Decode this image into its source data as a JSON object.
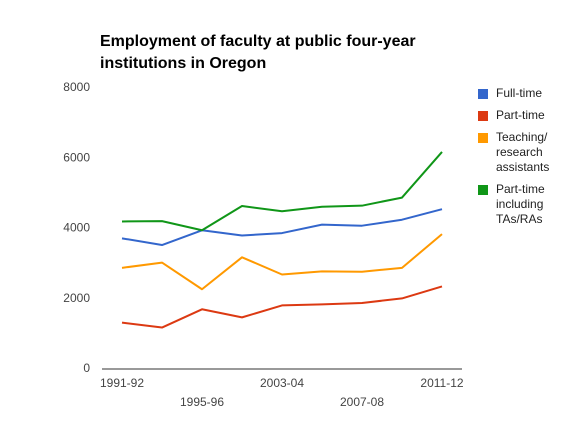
{
  "chart_data": {
    "type": "line",
    "title": "Employment of faculty at public four-year institutions in Oregon",
    "categories": [
      "1991-92",
      null,
      "1995-96",
      null,
      "2003-04",
      null,
      "2007-08",
      null,
      "2011-12"
    ],
    "series": [
      {
        "name": "Full-time",
        "color": "#3366cc",
        "values": [
          3720,
          3530,
          3950,
          3800,
          3870,
          4110,
          4080,
          4250,
          4550
        ]
      },
      {
        "name": "Part-time",
        "color": "#dc3912",
        "values": [
          1320,
          1180,
          1700,
          1470,
          1810,
          1840,
          1880,
          2010,
          2350
        ]
      },
      {
        "name": "Teaching/ research assistants",
        "color": "#ff9900",
        "values": [
          2880,
          3030,
          2270,
          3180,
          2690,
          2780,
          2770,
          2880,
          3840
        ]
      },
      {
        "name": "Part-time including TAs/RAs",
        "color": "#109618",
        "values": [
          4200,
          4210,
          3950,
          4640,
          4490,
          4620,
          4650,
          4880,
          6180
        ]
      }
    ],
    "ylim": [
      0,
      8000
    ],
    "yticks": [
      0,
      2000,
      4000,
      6000,
      8000
    ],
    "grid": false,
    "legend": "right"
  }
}
